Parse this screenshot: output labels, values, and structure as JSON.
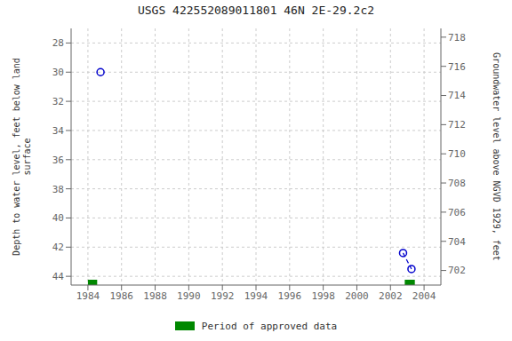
{
  "chart_data": {
    "type": "scatter",
    "title": "USGS 422552089011801 46N 2E-29.2c2",
    "y_label": "Depth to water level, feet below land\n surface",
    "y2_label": "Groundwater level above NGVD 1929, feet",
    "xlim": [
      1983,
      2005
    ],
    "xticks": [
      1984,
      1986,
      1988,
      1990,
      1992,
      1994,
      1996,
      1998,
      2000,
      2002,
      2004
    ],
    "ylim": [
      44.6,
      27.0
    ],
    "yticks": [
      28,
      30,
      32,
      34,
      36,
      38,
      40,
      42,
      44
    ],
    "y2lim": [
      701.0,
      718.6
    ],
    "y2ticks": [
      702,
      704,
      706,
      708,
      710,
      712,
      714,
      716,
      718
    ],
    "grid": true,
    "series": [
      {
        "type": "scatter",
        "marker": "open_circle",
        "color": "#0000cc",
        "x": [
          1984.75,
          2002.75,
          2003.25
        ],
        "values": [
          30.0,
          42.4,
          43.5
        ]
      },
      {
        "type": "line",
        "line_style": "dashed",
        "color": "#0000cc",
        "x": [
          2002.75,
          2003.25
        ],
        "values": [
          42.4,
          43.5
        ]
      }
    ],
    "approved_periods": {
      "name": "Period of approved data",
      "color": "#008800",
      "ranges": [
        [
          1984.0,
          1984.55
        ],
        [
          2002.85,
          2003.45
        ]
      ]
    }
  }
}
